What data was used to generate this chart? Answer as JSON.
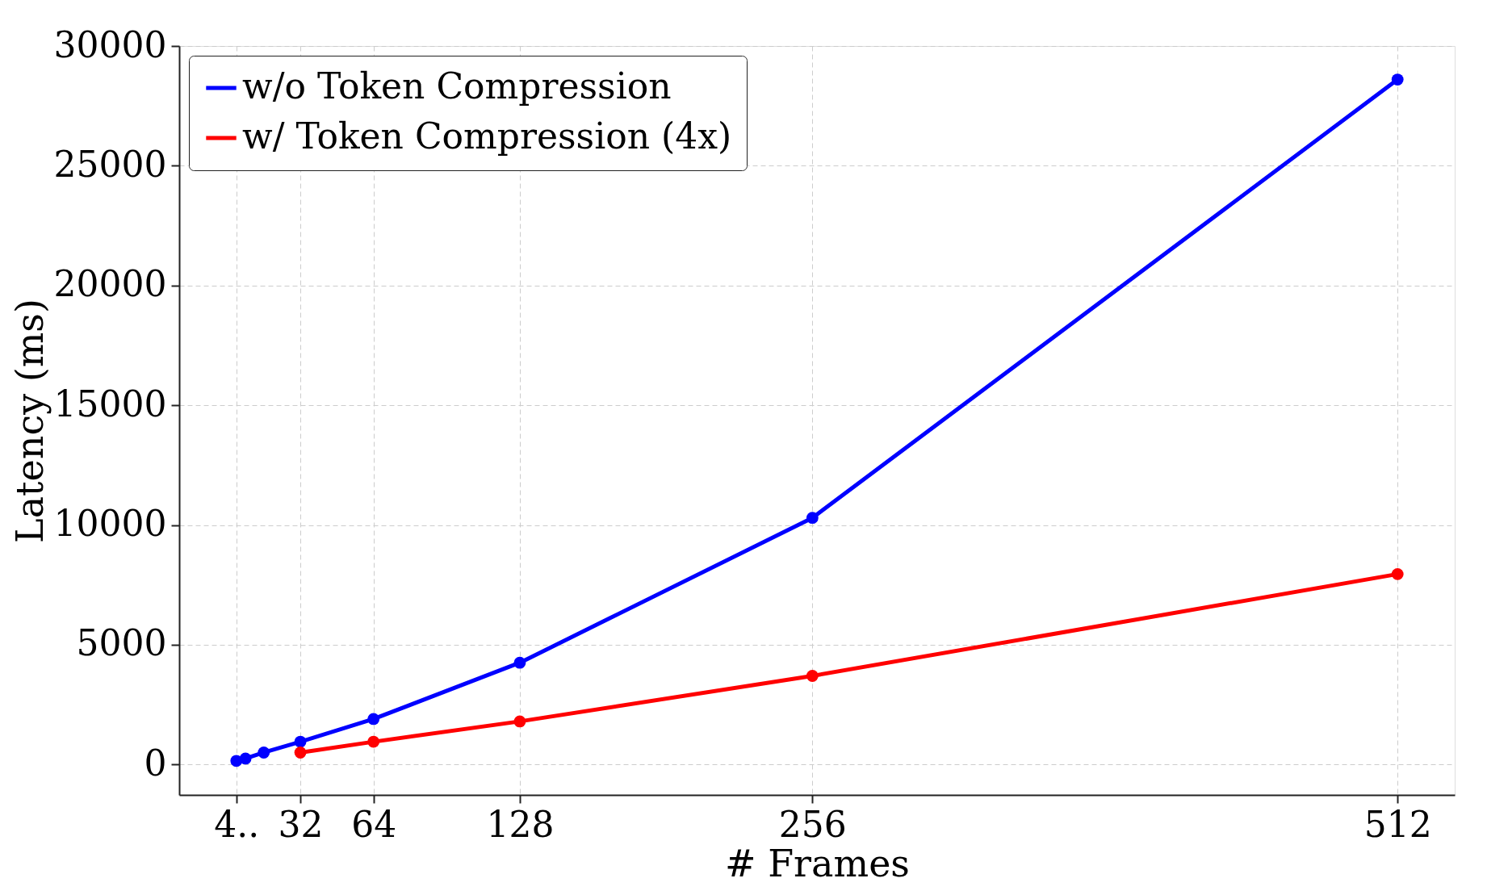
{
  "chart_data": {
    "type": "line",
    "xlabel": "# Frames",
    "ylabel": "Latency (ms)",
    "xlim": [
      -21,
      537
    ],
    "ylim": [
      -1270,
      30000
    ],
    "xticks": [
      {
        "value": 4,
        "label": "4.."
      },
      32,
      64,
      128,
      256,
      512
    ],
    "yticks": [
      0,
      5000,
      10000,
      15000,
      20000,
      25000,
      30000
    ],
    "grid": true,
    "legend": "top left",
    "marker": "circle",
    "line_style": "solid",
    "series": [
      {
        "name": "w/o Token Compression",
        "color": "#0000ff",
        "x": [
          4,
          8,
          16,
          32,
          64,
          128,
          256,
          512
        ],
        "values": [
          150,
          250,
          500,
          950,
          1900,
          4250,
          10300,
          28600
        ]
      },
      {
        "name": "w/ Token Compression (4x)",
        "color": "#ff0000",
        "x": [
          32,
          64,
          128,
          256,
          512
        ],
        "values": [
          500,
          950,
          1800,
          3700,
          7950
        ]
      }
    ]
  }
}
